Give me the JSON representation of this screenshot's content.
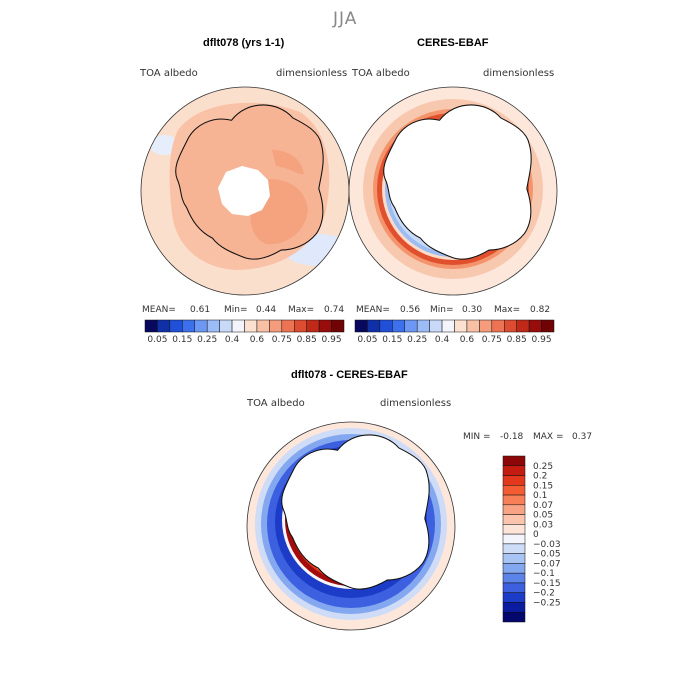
{
  "season": "JJA",
  "panels": [
    {
      "title": "dflt078 (yrs 1-1)",
      "variable": "TOA albedo",
      "units": "dimensionless",
      "stats": {
        "mean_label": "MEAN=",
        "mean": "0.61",
        "min_label": "Min=",
        "min": "0.44",
        "max_label": "Max=",
        "max": "0.74"
      }
    },
    {
      "title": "CERES-EBAF",
      "variable": "TOA albedo",
      "units": "dimensionless",
      "stats": {
        "mean_label": "MEAN=",
        "mean": "0.56",
        "min_label": "Min=",
        "min": "0.30",
        "max_label": "Max=",
        "max": "0.82"
      }
    }
  ],
  "colorbar": {
    "labels": [
      "0.05",
      "0.15",
      "0.25",
      "0.4",
      "0.6",
      "0.75",
      "0.85",
      "0.95"
    ],
    "colors": [
      "#08085e",
      "#1030a8",
      "#2050d8",
      "#3c70ec",
      "#6c98f4",
      "#9cbcf8",
      "#c8daf8",
      "#f4f4fc",
      "#fce0d0",
      "#f8c0a4",
      "#f49c7c",
      "#ec7454",
      "#dc4c30",
      "#c02818",
      "#980c0c",
      "#700404"
    ]
  },
  "diff_panel": {
    "title": "dflt078 - CERES-EBAF",
    "variable": "TOA albedo",
    "units": "dimensionless",
    "min_label": "MIN =",
    "min": "-0.18",
    "max_label": "MAX =",
    "max": "0.37"
  },
  "diff_colorbar": {
    "labels": [
      "0.25",
      "0.2",
      "0.15",
      "0.1",
      "0.07",
      "0.05",
      "0.03",
      "0",
      "−0.03",
      "−0.05",
      "−0.07",
      "−0.1",
      "−0.15",
      "−0.2",
      "−0.25"
    ],
    "colors": [
      "#8c0808",
      "#c41c10",
      "#e4381c",
      "#f45c34",
      "#f88058",
      "#f8a484",
      "#fcc4ac",
      "#fce4d8",
      "#f4f4fc",
      "#cfdcf8",
      "#a8c4f4",
      "#84a8f0",
      "#5c84e8",
      "#3c60e0",
      "#1c3cc8",
      "#0c1ca0",
      "#04086c"
    ]
  },
  "map_colors": {
    "ocean_light": "#fbdfcd",
    "model_land": "#f7b495",
    "model_plateau": "#f5a27e",
    "pole_white": "#ffffff",
    "obs_light": "#fbd6c1",
    "obs_dark_ring": "#e0502e",
    "obs_blue_ring": "#a8c4f4",
    "diff_red": "#a40c0c",
    "diff_blue": "#2d52d4",
    "diff_blue_light": "#93b2f0"
  }
}
